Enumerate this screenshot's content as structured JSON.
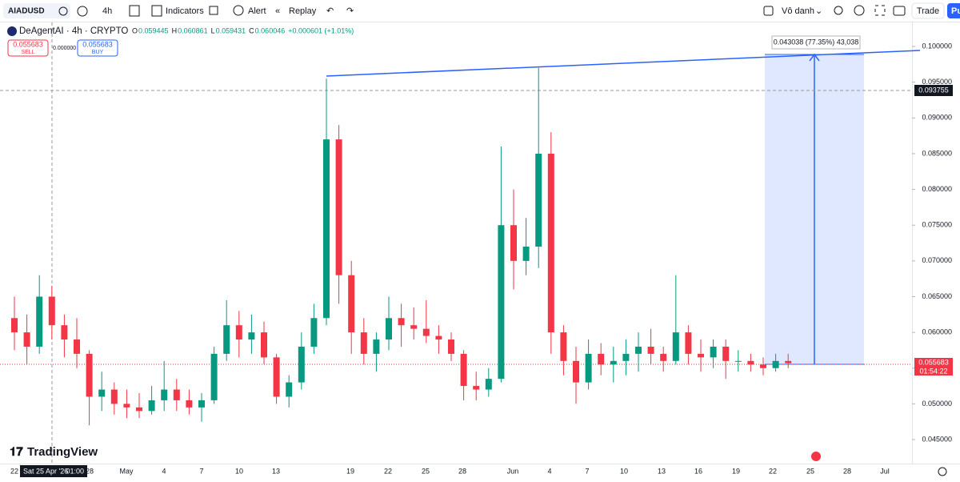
{
  "toolbar": {
    "symbol": "AIADUSD",
    "interval": "4h",
    "indicators": "Indicators",
    "alert": "Alert",
    "replay": "Replay",
    "layout_name": "Vô danh",
    "trade": "Trade",
    "publish": "Pu"
  },
  "legend": {
    "title": "DeAgentAI · 4h · CRYPTO",
    "ohlc": [
      {
        "label": "O",
        "value": "0.059445"
      },
      {
        "label": "H",
        "value": "0.060861"
      },
      {
        "label": "L",
        "value": "0.059431"
      },
      {
        "label": "C",
        "value": "0.060046"
      }
    ],
    "change": "+0.000601 (+1.01%)",
    "sell_price": "0.055683",
    "sell": "SELL",
    "spread": "0.000000",
    "buy_price": "0.055683",
    "buy": "BUY"
  },
  "measure": {
    "label": "0.043038 (77.35%) 43,038"
  },
  "crosshair": {
    "price": "0.093755",
    "time": "Sat 25 Apr '26",
    "hour": "01:00"
  },
  "last_price": {
    "price": "0.055683",
    "countdown": "01:54:22"
  },
  "brand": "TradingView",
  "chart_data": {
    "type": "candlestick",
    "up_color": "#089981",
    "down_color": "#f23645",
    "ylim": [
      0.04209,
      0.10314
    ],
    "yticks": [
      {
        "value": 0.1,
        "label": "0.100000"
      },
      {
        "value": 0.095,
        "label": "0.095000"
      },
      {
        "value": 0.09,
        "label": "0.090000"
      },
      {
        "value": 0.085,
        "label": "0.085000"
      },
      {
        "value": 0.08,
        "label": "0.080000"
      },
      {
        "value": 0.075,
        "label": "0.075000"
      },
      {
        "value": 0.07,
        "label": "0.070000"
      },
      {
        "value": 0.065,
        "label": "0.065000"
      },
      {
        "value": 0.06,
        "label": "0.060000"
      },
      {
        "value": 0.055,
        "label": "0.055000"
      },
      {
        "value": 0.05,
        "label": "0.050000"
      },
      {
        "value": 0.045,
        "label": "0.045000"
      }
    ],
    "xlabels": [
      "22",
      "28",
      "May",
      "4",
      "7",
      "10",
      "13",
      "19",
      "22",
      "25",
      "28",
      "Jun",
      "4",
      "7",
      "10",
      "13",
      "16",
      "19",
      "22",
      "25",
      "28",
      "Jul"
    ],
    "candles": [
      [
        0.062,
        0.065,
        0.0575,
        0.06
      ],
      [
        0.06,
        0.0625,
        0.0555,
        0.058
      ],
      [
        0.058,
        0.068,
        0.057,
        0.065
      ],
      [
        0.065,
        0.0665,
        0.059,
        0.061
      ],
      [
        0.061,
        0.0625,
        0.0565,
        0.059
      ],
      [
        0.059,
        0.062,
        0.055,
        0.057
      ],
      [
        0.057,
        0.0575,
        0.047,
        0.051
      ],
      [
        0.051,
        0.0545,
        0.049,
        0.052
      ],
      [
        0.052,
        0.053,
        0.0485,
        0.05
      ],
      [
        0.05,
        0.052,
        0.048,
        0.0495
      ],
      [
        0.0495,
        0.0515,
        0.048,
        0.049
      ],
      [
        0.049,
        0.0525,
        0.0485,
        0.0505
      ],
      [
        0.0505,
        0.056,
        0.049,
        0.052
      ],
      [
        0.052,
        0.0535,
        0.049,
        0.0505
      ],
      [
        0.0505,
        0.052,
        0.0485,
        0.0495
      ],
      [
        0.0495,
        0.0515,
        0.0475,
        0.0505
      ],
      [
        0.0505,
        0.058,
        0.05,
        0.057
      ],
      [
        0.057,
        0.0645,
        0.056,
        0.061
      ],
      [
        0.061,
        0.063,
        0.0565,
        0.059
      ],
      [
        0.059,
        0.0625,
        0.057,
        0.06
      ],
      [
        0.06,
        0.0615,
        0.0555,
        0.0565
      ],
      [
        0.0565,
        0.057,
        0.05,
        0.051
      ],
      [
        0.051,
        0.054,
        0.0495,
        0.053
      ],
      [
        0.053,
        0.06,
        0.052,
        0.058
      ],
      [
        0.058,
        0.064,
        0.057,
        0.062
      ],
      [
        0.062,
        0.0955,
        0.061,
        0.087
      ],
      [
        0.087,
        0.089,
        0.064,
        0.068
      ],
      [
        0.068,
        0.07,
        0.057,
        0.06
      ],
      [
        0.06,
        0.062,
        0.0555,
        0.057
      ],
      [
        0.057,
        0.06,
        0.0545,
        0.059
      ],
      [
        0.059,
        0.065,
        0.0575,
        0.062
      ],
      [
        0.062,
        0.064,
        0.058,
        0.061
      ],
      [
        0.061,
        0.0635,
        0.059,
        0.0605
      ],
      [
        0.0605,
        0.0645,
        0.0585,
        0.0595
      ],
      [
        0.0595,
        0.061,
        0.057,
        0.059
      ],
      [
        0.059,
        0.06,
        0.056,
        0.057
      ],
      [
        0.057,
        0.0575,
        0.0505,
        0.0525
      ],
      [
        0.0525,
        0.0545,
        0.0505,
        0.052
      ],
      [
        0.052,
        0.055,
        0.051,
        0.0535
      ],
      [
        0.0535,
        0.086,
        0.053,
        0.075
      ],
      [
        0.075,
        0.08,
        0.066,
        0.07
      ],
      [
        0.07,
        0.076,
        0.068,
        0.072
      ],
      [
        0.072,
        0.097,
        0.069,
        0.085
      ],
      [
        0.085,
        0.088,
        0.057,
        0.06
      ],
      [
        0.06,
        0.061,
        0.054,
        0.056
      ],
      [
        0.056,
        0.058,
        0.05,
        0.053
      ],
      [
        0.053,
        0.059,
        0.052,
        0.057
      ],
      [
        0.057,
        0.0585,
        0.054,
        0.0555
      ],
      [
        0.0555,
        0.058,
        0.053,
        0.056
      ],
      [
        0.056,
        0.059,
        0.054,
        0.057
      ],
      [
        0.057,
        0.06,
        0.0545,
        0.058
      ],
      [
        0.058,
        0.0605,
        0.0555,
        0.057
      ],
      [
        0.057,
        0.058,
        0.0545,
        0.056
      ],
      [
        0.056,
        0.068,
        0.0555,
        0.06
      ],
      [
        0.06,
        0.061,
        0.0555,
        0.057
      ],
      [
        0.057,
        0.059,
        0.0545,
        0.0565
      ],
      [
        0.0565,
        0.059,
        0.055,
        0.058
      ],
      [
        0.058,
        0.059,
        0.0535,
        0.056
      ],
      [
        0.056,
        0.0575,
        0.0545,
        0.056
      ],
      [
        0.056,
        0.057,
        0.0545,
        0.0555
      ],
      [
        0.0555,
        0.0565,
        0.054,
        0.055
      ],
      [
        0.055,
        0.057,
        0.0545,
        0.056
      ],
      [
        0.056,
        0.057,
        0.055,
        0.05568
      ]
    ]
  }
}
